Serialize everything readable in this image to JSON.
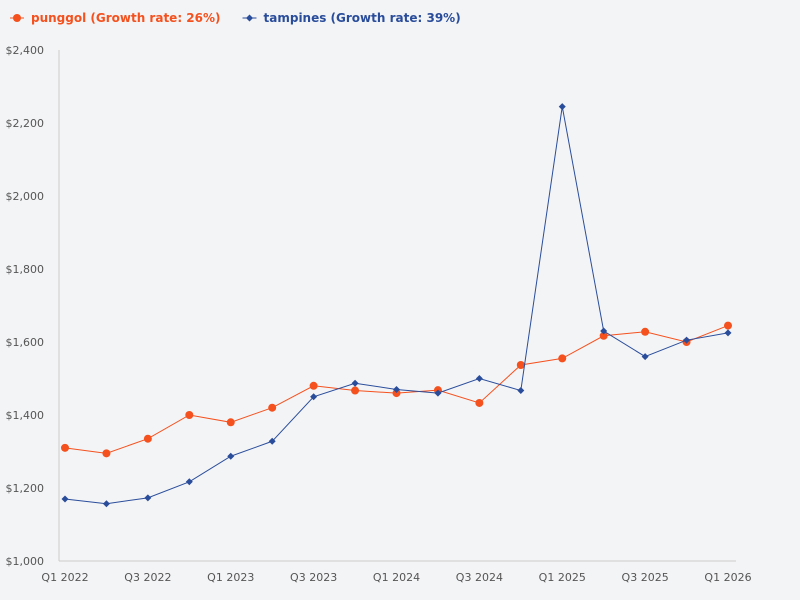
{
  "chart_data": {
    "type": "line",
    "title": "",
    "xlabel": "",
    "ylabel": "",
    "ylim": [
      1000,
      2400
    ],
    "yticks": [
      1000,
      1200,
      1400,
      1600,
      1800,
      2000,
      2200,
      2400
    ],
    "ytick_labels": [
      "$1,000",
      "$1,200",
      "$1,400",
      "$1,600",
      "$1,800",
      "$2,000",
      "$2,200",
      "$2,400"
    ],
    "categories": [
      "Q1 2022",
      "Q2 2022",
      "Q3 2022",
      "Q4 2022",
      "Q1 2023",
      "Q2 2023",
      "Q3 2023",
      "Q4 2023",
      "Q1 2024",
      "Q2 2024",
      "Q3 2024",
      "Q4 2024",
      "Q1 2025",
      "Q2 2025",
      "Q3 2025",
      "Q4 2025",
      "Q1 2026"
    ],
    "xtick_labels": [
      "Q1 2022",
      "",
      "Q3 2022",
      "",
      "Q1 2023",
      "",
      "Q3 2023",
      "",
      "Q1 2024",
      "",
      "Q3 2024",
      "",
      "Q1 2025",
      "",
      "Q3 2025",
      "",
      "Q1 2026"
    ],
    "grid": false,
    "legend_position": "top-left",
    "series": [
      {
        "name": "punggol (Growth rate: 26%)",
        "color": "#f4511e",
        "marker": "circle",
        "values": [
          1310,
          1295,
          1335,
          1400,
          1380,
          1420,
          1480,
          1467,
          1460,
          1468,
          1433,
          1537,
          1555,
          1617,
          1628,
          1600,
          1645
        ]
      },
      {
        "name": "tampines (Growth rate: 39%)",
        "color": "#2a4d9b",
        "marker": "diamond",
        "values": [
          1170,
          1157,
          1173,
          1217,
          1287,
          1328,
          1450,
          1487,
          1470,
          1460,
          1500,
          1467,
          2245,
          1630,
          1560,
          1605,
          1625
        ]
      }
    ]
  }
}
